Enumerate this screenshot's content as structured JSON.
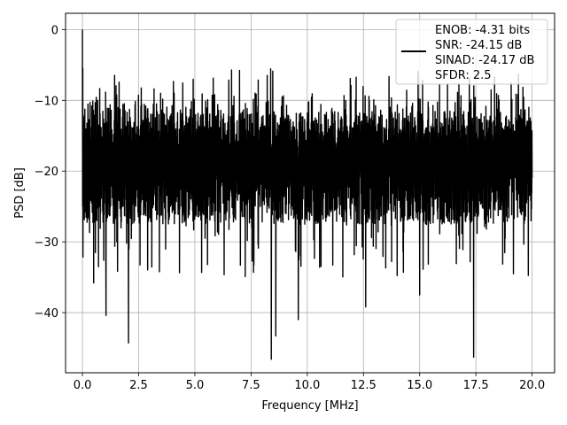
{
  "chart_data": {
    "type": "line",
    "title": "",
    "xlabel": "Frequency [MHz]",
    "ylabel": "PSD [dB]",
    "xlim": [
      -0.75,
      21.0
    ],
    "ylim": [
      -48.5,
      2.3
    ],
    "xticks": [
      0.0,
      2.5,
      5.0,
      7.5,
      10.0,
      12.5,
      15.0,
      17.5,
      20.0
    ],
    "xtick_labels": [
      "0.0",
      "2.5",
      "5.0",
      "7.5",
      "10.0",
      "12.5",
      "15.0",
      "17.5",
      "20.0"
    ],
    "yticks": [
      0,
      -10,
      -20,
      -30,
      -40
    ],
    "ytick_labels": [
      "0",
      "−10",
      "−20",
      "−30",
      "−40"
    ],
    "grid": true,
    "legend_position": "top-right",
    "legend": {
      "lines": [
        "ENOB: -4.31 bits",
        "SNR: -24.15 dB",
        "SINAD: -24.17 dB",
        "SFDR: 2.5"
      ]
    },
    "series": [
      {
        "color": "#000000",
        "description": "dense noise-like PSD trace between about -8 and -25 dB",
        "x_range": [
          0.0,
          20.0
        ],
        "peak": {
          "x": 0.0,
          "y": 0.0
        },
        "notable_minima": [
          {
            "x": 0.5,
            "y": -35.8
          },
          {
            "x": 1.05,
            "y": -40.4
          },
          {
            "x": 2.05,
            "y": -44.3
          },
          {
            "x": 8.4,
            "y": -46.6
          },
          {
            "x": 8.6,
            "y": -43.3
          },
          {
            "x": 9.6,
            "y": -41.0
          },
          {
            "x": 12.6,
            "y": -39.2
          },
          {
            "x": 15.0,
            "y": -37.5
          },
          {
            "x": 17.4,
            "y": -46.3
          }
        ]
      }
    ]
  }
}
